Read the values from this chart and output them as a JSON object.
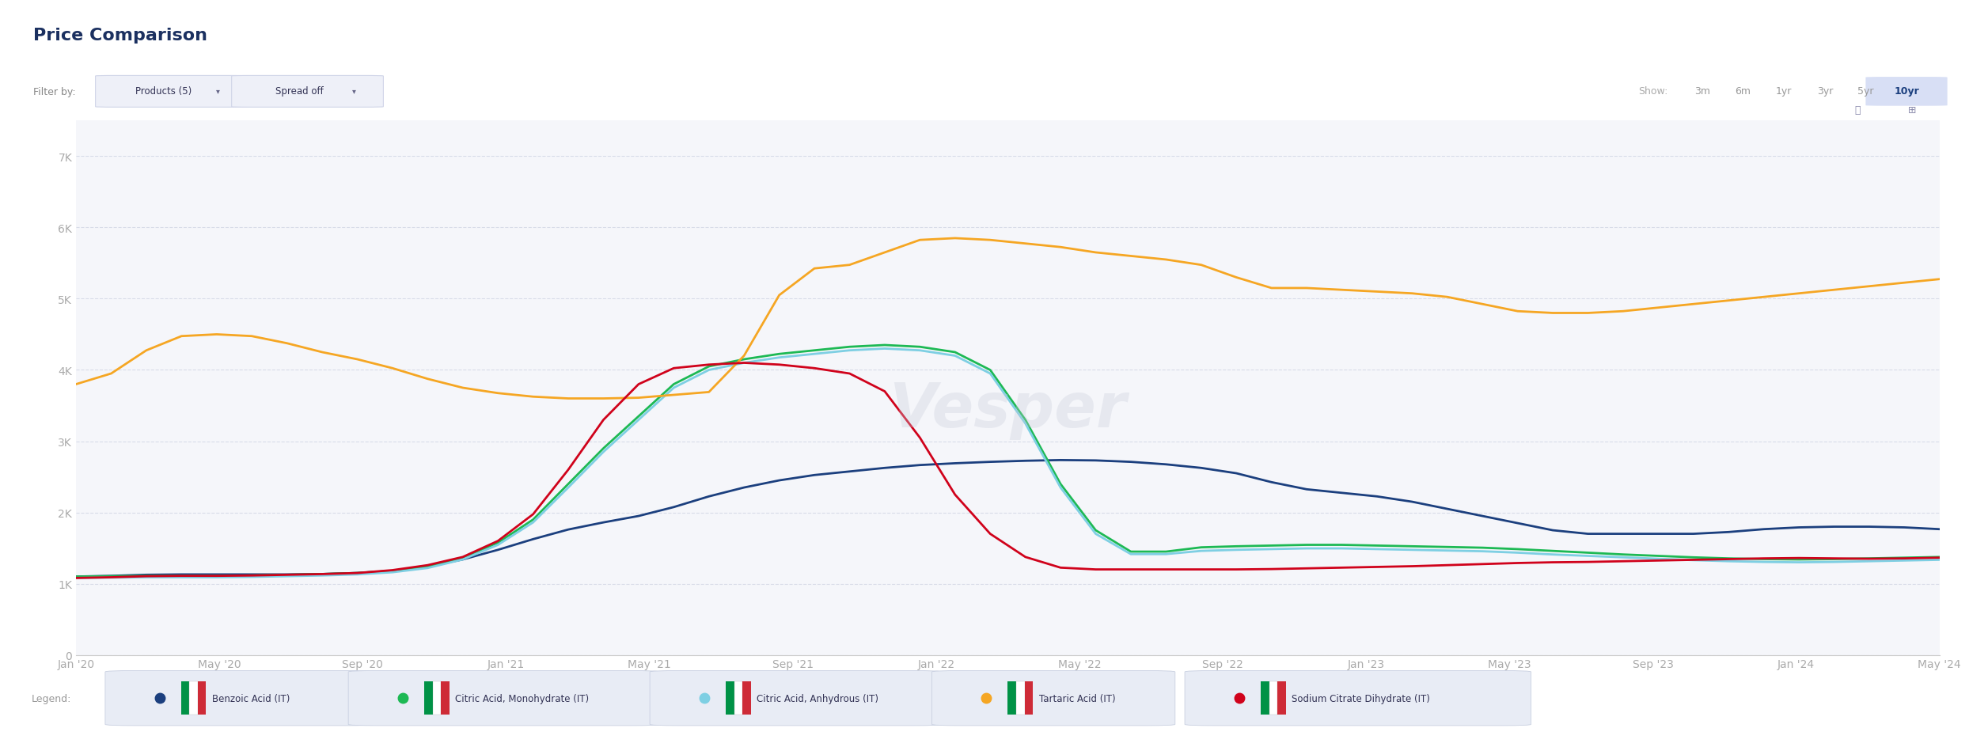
{
  "title": "Price Comparison",
  "page_bg": "#f5f6fa",
  "chart_bg": "#f5f6fa",
  "ylim": [
    0,
    7500
  ],
  "yticks": [
    0,
    1000,
    2000,
    3000,
    4000,
    5000,
    6000,
    7000
  ],
  "ytick_labels": [
    "0",
    "1K",
    "2K",
    "3K",
    "4K",
    "5K",
    "6K",
    "7K"
  ],
  "x_labels": [
    "Jan '20",
    "May '20",
    "Sep '20",
    "Jan '21",
    "May '21",
    "Sep '21",
    "Jan '22",
    "May '22",
    "Sep '22",
    "Jan '23",
    "May '23",
    "Sep '23",
    "Jan '24",
    "May '24"
  ],
  "series": {
    "benzoic_acid": {
      "label": "Benzoic Acid (IT)",
      "color": "#1b3f7e",
      "values": [
        1100,
        1120,
        1130,
        1130,
        1130,
        1130,
        1130,
        1140,
        1160,
        1200,
        1280,
        1400,
        1550,
        1700,
        1820,
        1900,
        2000,
        2150,
        2300,
        2400,
        2500,
        2550,
        2600,
        2650,
        2680,
        2700,
        2720,
        2730,
        2740,
        2720,
        2700,
        2650,
        2600,
        2500,
        2350,
        2300,
        2250,
        2200,
        2100,
        2000,
        1900,
        1800,
        1700,
        1700,
        1700,
        1700,
        1700,
        1750,
        1780,
        1800,
        1800,
        1800,
        1780,
        1750
      ]
    },
    "citric_monohydrate": {
      "label": "Citric Acid, Monohydrate (IT)",
      "color": "#1db954",
      "values": [
        1100,
        1110,
        1110,
        1110,
        1110,
        1120,
        1130,
        1140,
        1160,
        1200,
        1280,
        1450,
        1700,
        2100,
        2700,
        3100,
        3600,
        4000,
        4100,
        4200,
        4250,
        4300,
        4350,
        4350,
        4300,
        4200,
        3800,
        2800,
        2000,
        1500,
        1400,
        1500,
        1520,
        1530,
        1540,
        1550,
        1540,
        1530,
        1520,
        1510,
        1500,
        1470,
        1450,
        1420,
        1400,
        1380,
        1360,
        1350,
        1340,
        1340,
        1350,
        1360,
        1370,
        1380
      ]
    },
    "citric_anhydrous": {
      "label": "Citric Acid, Anhydrous (IT)",
      "color": "#7ecfe3",
      "values": [
        1080,
        1090,
        1090,
        1090,
        1090,
        1100,
        1110,
        1120,
        1140,
        1180,
        1260,
        1420,
        1670,
        2050,
        2650,
        3050,
        3550,
        3950,
        4050,
        4150,
        4200,
        4250,
        4300,
        4300,
        4250,
        4150,
        3750,
        2750,
        1950,
        1450,
        1380,
        1450,
        1470,
        1480,
        1490,
        1500,
        1490,
        1480,
        1470,
        1460,
        1450,
        1420,
        1400,
        1380,
        1360,
        1340,
        1320,
        1310,
        1300,
        1300,
        1310,
        1320,
        1330,
        1340
      ]
    },
    "tartaric_acid": {
      "label": "Tartaric Acid (IT)",
      "color": "#f5a623",
      "values": [
        3800,
        4100,
        4450,
        4500,
        4500,
        4450,
        4300,
        4200,
        4100,
        3950,
        3800,
        3700,
        3650,
        3600,
        3600,
        3600,
        3620,
        3680,
        3700,
        4700,
        5400,
        5450,
        5500,
        5800,
        5850,
        5850,
        5800,
        5750,
        5700,
        5600,
        5600,
        5500,
        5450,
        5150,
        5150,
        5150,
        5100,
        5100,
        5050,
        5000,
        4850,
        4800,
        4800,
        4800,
        4850,
        4900,
        4950,
        5000,
        5050,
        5100,
        5150,
        5200,
        5250,
        5300
      ]
    },
    "sodium_citrate": {
      "label": "Sodium Citrate Dihydrate (IT)",
      "color": "#d0021b",
      "values": [
        1080,
        1100,
        1110,
        1110,
        1110,
        1120,
        1130,
        1140,
        1160,
        1220,
        1300,
        1450,
        1750,
        2200,
        3000,
        3600,
        4000,
        4050,
        4100,
        4100,
        4050,
        4000,
        3900,
        3500,
        2600,
        1900,
        1500,
        1250,
        1200,
        1200,
        1200,
        1200,
        1200,
        1200,
        1210,
        1220,
        1230,
        1240,
        1250,
        1270,
        1280,
        1300,
        1300,
        1310,
        1320,
        1330,
        1340,
        1350,
        1360,
        1360,
        1350,
        1350,
        1360,
        1370
      ]
    }
  },
  "legend": [
    {
      "label": "Benzoic Acid (IT)",
      "color": "#1b3f7e"
    },
    {
      "label": "Citric Acid, Monohydrate (IT)",
      "color": "#1db954"
    },
    {
      "label": "Citric Acid, Anhydrous (IT)",
      "color": "#7ecfe3"
    },
    {
      "label": "Tartaric Acid (IT)",
      "color": "#f5a623"
    },
    {
      "label": "Sodium Citrate Dihydrate (IT)",
      "color": "#d0021b"
    }
  ],
  "filter_label": "Filter by:",
  "dropdown1": "Products (5)",
  "dropdown2": "Spread off",
  "show_label": "Show:",
  "show_options": [
    "3m",
    "6m",
    "1yr",
    "3yr",
    "5yr",
    "10yr"
  ],
  "show_active": "10yr"
}
